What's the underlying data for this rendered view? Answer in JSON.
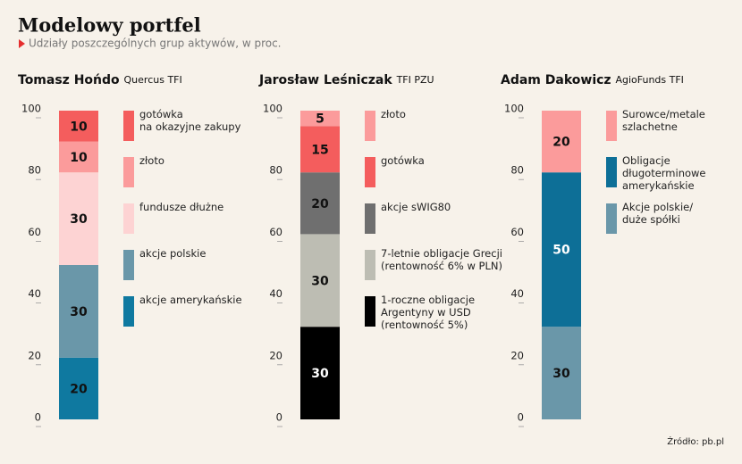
{
  "title": "Modelowy portfel",
  "subtitle": "Udziały poszczególnych grup aktywów, w proc.",
  "source": "Źródło: pb.pl",
  "chart_data": [
    {
      "type": "stacked_bar",
      "title": "Tomasz Hońdo",
      "subtitle": "Quercus TFI",
      "ylim": [
        0,
        100
      ],
      "yticks": [
        0,
        20,
        40,
        60,
        80,
        100
      ],
      "series": [
        {
          "name": "gotówka\nna okazyjne zakupy",
          "color": "#f45d5d",
          "values": [
            10
          ]
        },
        {
          "name": "złoto",
          "color": "#fb9b9b",
          "values": [
            10
          ]
        },
        {
          "name": "fundusze dłużne",
          "color": "#fdd3d3",
          "values": [
            30
          ]
        },
        {
          "name": "akcje polskie",
          "color": "#6a97a9",
          "values": [
            30
          ]
        },
        {
          "name": "akcje amerykańskie",
          "color": "#0f79a0",
          "values": [
            20
          ]
        }
      ]
    },
    {
      "type": "stacked_bar",
      "title": "Jarosław Leśniczak",
      "subtitle": "TFI PZU",
      "ylim": [
        0,
        100
      ],
      "yticks": [
        0,
        20,
        40,
        60,
        80,
        100
      ],
      "series": [
        {
          "name": "złoto",
          "color": "#fb9b9b",
          "values": [
            5
          ]
        },
        {
          "name": "gotówka",
          "color": "#f45d5d",
          "values": [
            15
          ]
        },
        {
          "name": "akcje sWIG80",
          "color": "#6f6f6f",
          "values": [
            20
          ]
        },
        {
          "name": "7-letnie obligacje Grecji\n(rentowność 6% w PLN)",
          "color": "#bdbdb3",
          "values": [
            30
          ]
        },
        {
          "name": "1-roczne obligacje\nArgentyny w USD\n(rentowność 5%)",
          "color": "#000000",
          "values": [
            30
          ]
        }
      ]
    },
    {
      "type": "stacked_bar",
      "title": "Adam Dakowicz",
      "subtitle": "AgioFunds TFI",
      "ylim": [
        0,
        100
      ],
      "yticks": [
        0,
        20,
        40,
        60,
        80,
        100
      ],
      "series": [
        {
          "name": "Surowce/metale\nszlachetne",
          "color": "#fb9b9b",
          "values": [
            20
          ]
        },
        {
          "name": "Obligacje\ndługoterminowe\namerykańskie",
          "color": "#0d6f97",
          "values": [
            50
          ]
        },
        {
          "name": "Akcje polskie/\nduże spółki",
          "color": "#6a97a9",
          "values": [
            30
          ]
        }
      ]
    }
  ]
}
